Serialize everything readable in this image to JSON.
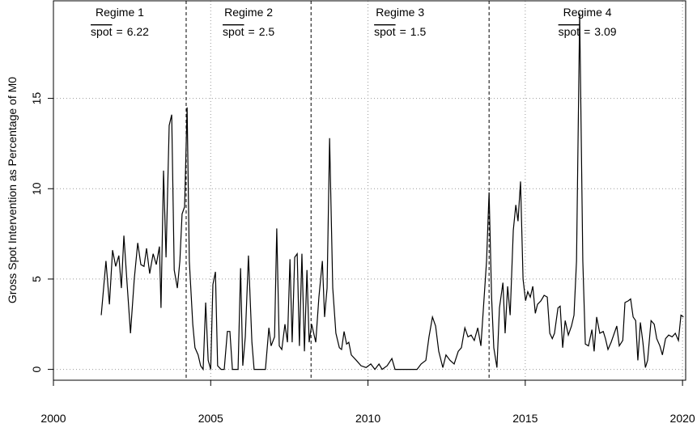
{
  "chart_data": {
    "type": "line",
    "y_label": "Gross Spot Intervention as Percentage of M0",
    "xlim": [
      2000,
      2020.1
    ],
    "xticks": [
      2000,
      2005,
      2010,
      2015,
      2020
    ],
    "ylim": [
      -0.6,
      20.4
    ],
    "yticks": [
      0,
      5,
      10,
      15
    ],
    "grid": true,
    "mean_symbol": "spot",
    "mean_relation": "=",
    "regimes": [
      {
        "label": "Regime 1",
        "mean": 6.22,
        "start": 2000,
        "end": 2004.22
      },
      {
        "label": "Regime 2",
        "mean": 2.5,
        "start": 2004.22,
        "end": 2008.19
      },
      {
        "label": "Regime 3",
        "mean": 1.5,
        "start": 2008.19,
        "end": 2013.85
      },
      {
        "label": "Regime 4",
        "mean": 3.09,
        "start": 2013.85,
        "end": 2020.1
      }
    ],
    "series": [
      {
        "color": "#000000",
        "x": [
          2001.52,
          2001.67,
          2001.78,
          2001.88,
          2001.98,
          2002.08,
          2002.16,
          2002.24,
          2002.34,
          2002.45,
          2002.57,
          2002.68,
          2002.78,
          2002.88,
          2002.96,
          2003.06,
          2003.17,
          2003.27,
          2003.37,
          2003.42,
          2003.5,
          2003.58,
          2003.68,
          2003.76,
          2003.84,
          2003.94,
          2004.02,
          2004.09,
          2004.17,
          2004.25,
          2004.32,
          2004.43,
          2004.5,
          2004.6,
          2004.68,
          2004.76,
          2004.84,
          2004.92,
          2005,
          2005.07,
          2005.15,
          2005.22,
          2005.33,
          2005.43,
          2005.53,
          2005.61,
          2005.69,
          2005.79,
          2005.87,
          2005.95,
          2006.02,
          2006.1,
          2006.2,
          2006.31,
          2006.38,
          2006.49,
          2006.59,
          2006.74,
          2006.85,
          2006.92,
          2007.03,
          2007.1,
          2007.18,
          2007.26,
          2007.36,
          2007.44,
          2007.52,
          2007.59,
          2007.67,
          2007.75,
          2007.82,
          2007.9,
          2007.98,
          2008.06,
          2008.13,
          2008.21,
          2008.34,
          2008.44,
          2008.55,
          2008.62,
          2008.7,
          2008.78,
          2008.88,
          2008.98,
          2009.09,
          2009.16,
          2009.24,
          2009.32,
          2009.39,
          2009.47,
          2009.63,
          2009.78,
          2009.94,
          2010.09,
          2010.22,
          2010.35,
          2010.45,
          2010.61,
          2010.76,
          2010.86,
          2011.17,
          2011.56,
          2011.69,
          2011.84,
          2011.94,
          2012.05,
          2012.15,
          2012.25,
          2012.38,
          2012.48,
          2012.61,
          2012.74,
          2012.87,
          2012.97,
          2013.08,
          2013.18,
          2013.28,
          2013.38,
          2013.49,
          2013.59,
          2013.69,
          2013.77,
          2013.85,
          2013.93,
          2014.0,
          2014.1,
          2014.18,
          2014.29,
          2014.36,
          2014.44,
          2014.52,
          2014.62,
          2014.7,
          2014.77,
          2014.85,
          2014.93,
          2015.01,
          2015.08,
          2015.16,
          2015.24,
          2015.32,
          2015.39,
          2015.5,
          2015.6,
          2015.7,
          2015.78,
          2015.86,
          2015.93,
          2016.04,
          2016.11,
          2016.19,
          2016.27,
          2016.37,
          2016.47,
          2016.55,
          2016.63,
          2016.73,
          2016.83,
          2016.91,
          2017.01,
          2017.12,
          2017.19,
          2017.27,
          2017.37,
          2017.48,
          2017.55,
          2017.63,
          2017.73,
          2017.81,
          2017.91,
          2017.99,
          2018.1,
          2018.17,
          2018.28,
          2018.35,
          2018.43,
          2018.51,
          2018.58,
          2018.66,
          2018.74,
          2018.82,
          2018.89,
          2019.0,
          2019.1,
          2019.18,
          2019.28,
          2019.36,
          2019.46,
          2019.56,
          2019.67,
          2019.77,
          2019.87,
          2019.95,
          2020.03
        ],
        "values": [
          3.0,
          6.0,
          3.6,
          6.6,
          5.7,
          6.3,
          4.5,
          7.4,
          4.8,
          2.0,
          5.0,
          7.0,
          5.8,
          5.7,
          6.7,
          5.3,
          6.4,
          5.8,
          6.8,
          3.4,
          11.0,
          6.2,
          13.5,
          14.1,
          5.5,
          4.5,
          6.0,
          8.6,
          9.0,
          14.5,
          6.0,
          2.5,
          1.2,
          0.8,
          0.2,
          0,
          3.7,
          0.5,
          0,
          4.7,
          5.4,
          0.2,
          0,
          0,
          2.1,
          2.1,
          0,
          0,
          0,
          5.6,
          0.2,
          1.8,
          6.3,
          1.5,
          0,
          0,
          0,
          0,
          2.3,
          1.3,
          1.8,
          7.8,
          1.3,
          1.1,
          2.5,
          1.5,
          6.1,
          1.5,
          6.2,
          6.4,
          1.3,
          6.4,
          1.0,
          5.5,
          1.5,
          2.5,
          1.5,
          4.0,
          6.0,
          2.9,
          4.5,
          12.8,
          4.5,
          2.0,
          1.2,
          1.1,
          2.1,
          1.4,
          1.5,
          0.8,
          0.5,
          0.2,
          0.1,
          0.3,
          0,
          0.3,
          0,
          0.2,
          0.6,
          0,
          0,
          0,
          0.3,
          0.5,
          1.8,
          2.9,
          2.4,
          1.0,
          0.1,
          0.8,
          0.5,
          0.3,
          1.0,
          1.2,
          2.3,
          1.8,
          1.9,
          1.6,
          2.3,
          1.3,
          3.9,
          6.0,
          9.8,
          4.0,
          1.2,
          0.1,
          3.4,
          4.8,
          2.0,
          4.6,
          3.0,
          7.7,
          9.1,
          8.2,
          10.4,
          5.0,
          3.8,
          4.3,
          4.0,
          4.6,
          3.1,
          3.6,
          3.8,
          4.1,
          4.0,
          2.0,
          1.7,
          2.0,
          3.4,
          3.5,
          1.2,
          2.7,
          1.9,
          2.4,
          3.0,
          6.0,
          19.7,
          6.0,
          1.4,
          1.3,
          2.2,
          1.0,
          2.9,
          2.0,
          2.1,
          1.7,
          1.1,
          1.5,
          1.9,
          2.4,
          1.3,
          1.6,
          3.7,
          3.8,
          3.9,
          2.9,
          2.7,
          0.5,
          2.6,
          1.5,
          0.1,
          0.5,
          2.7,
          2.5,
          1.7,
          1.3,
          0.8,
          1.7,
          1.9,
          1.8,
          2.0,
          1.6,
          3.0,
          2.9
        ]
      }
    ]
  }
}
